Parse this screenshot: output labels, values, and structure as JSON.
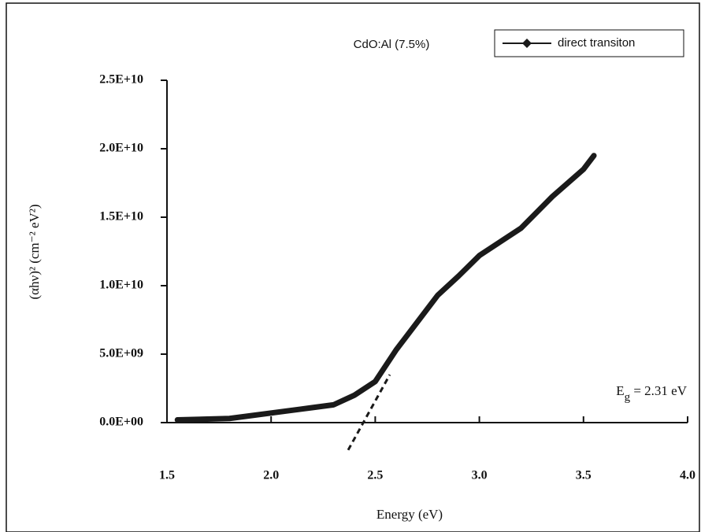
{
  "chart_data": {
    "type": "line",
    "title": "CdO:Al (7.5%)",
    "x_label": "Energy (eV)",
    "y_label": "(αhν)² (cm⁻² eV²)",
    "annotation": [
      "E",
      "g",
      " = 2.31 eV"
    ],
    "legend": "top-right",
    "xlim": [
      1.5,
      4.0
    ],
    "xticks": [
      1.5,
      {
        "value": 2.0,
        "label": "2.0"
      },
      2.5,
      {
        "value": 3.0,
        "label": "3.0"
      },
      3.5,
      {
        "value": 4.0,
        "label": "4.0"
      }
    ],
    "ylim": [
      0,
      25000000000
    ],
    "yticks": [
      {
        "value": 0,
        "label": "0.0E+00"
      },
      {
        "value": 5000000000,
        "label": "5.0E+09"
      },
      {
        "value": 10000000000,
        "label": "1.0E+10"
      },
      {
        "value": 15000000000,
        "label": "1.5E+10"
      },
      {
        "value": 20000000000,
        "label": "2.0E+10"
      },
      {
        "value": 25000000000,
        "label": "2.5E+10"
      }
    ],
    "series": [
      {
        "name": "direct transiton",
        "color": "#1a1a1a",
        "x": [
          1.55,
          1.8,
          2.0,
          2.2,
          2.3,
          2.4,
          2.5,
          2.6,
          2.7,
          2.8,
          2.9,
          3.0,
          3.2,
          3.35,
          3.5,
          3.55
        ],
        "values": [
          200000000,
          300000000,
          700000000,
          1100000000,
          1300000000,
          2000000000,
          3000000000,
          5300000000,
          7300000000,
          9300000000,
          10700000000,
          12200000000,
          14200000000,
          16500000000,
          18500000000,
          19500000000
        ]
      }
    ],
    "fit_line": {
      "color": "#1a1a1a",
      "x": [
        2.37,
        2.57
      ],
      "values": [
        -2000000000,
        3500000000
      ]
    }
  }
}
